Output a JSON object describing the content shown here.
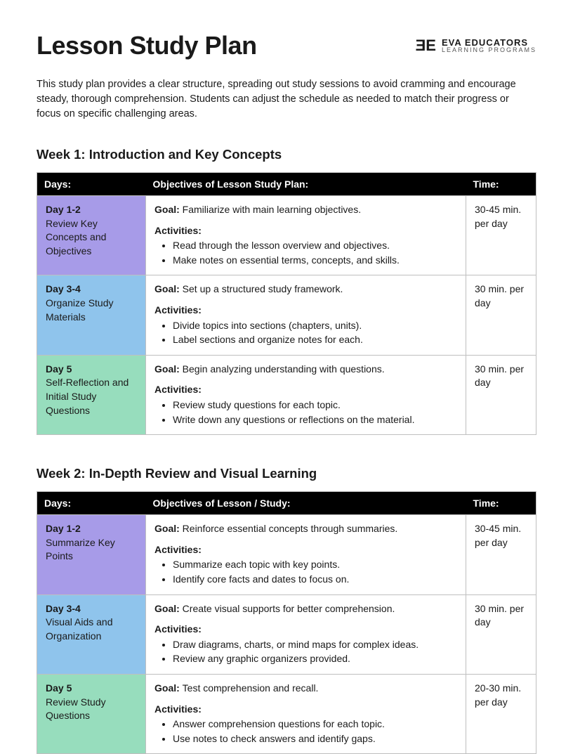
{
  "page_title": "Lesson Study Plan",
  "brand": {
    "mark": "ƎE",
    "name": "EVA EDUCATORS",
    "tagline": "LEARNING PROGRAMS"
  },
  "intro": "This study plan provides a clear structure, spreading out study sessions to avoid cramming and encourage steady, thorough comprehension. Students can adjust the schedule as needed to match their progress or focus on specific challenging areas.",
  "colors": {
    "header_bg": "#000000",
    "header_text": "#ffffff",
    "border": "#bfbfbf",
    "row_purple": "#a79be8",
    "row_blue": "#8fc4ec",
    "row_green": "#97ddbd"
  },
  "labels": {
    "goal": "Goal:",
    "activities": "Activities:"
  },
  "weeks": [
    {
      "heading": "Week 1: Introduction and Key Concepts",
      "columns": {
        "days": "Days:",
        "objectives": "Objectives of Lesson Study Plan:",
        "time": "Time:"
      },
      "rows": [
        {
          "day_title": "Day 1-2",
          "day_desc": "Review Key Concepts and Objectives",
          "goal": "Familiarize with main learning objectives.",
          "activities": [
            "Read through the lesson overview and objectives.",
            "Make notes on essential terms, concepts, and skills."
          ],
          "time": "30-45 min. per day",
          "bg": "bg-purple"
        },
        {
          "day_title": "Day 3-4",
          "day_desc": "Organize Study Materials",
          "goal": "Set up a structured study framework.",
          "activities": [
            "Divide topics into sections (chapters, units).",
            "Label sections and organize notes for each."
          ],
          "time": "30 min. per day",
          "bg": "bg-blue"
        },
        {
          "day_title": "Day 5",
          "day_desc": "Self-Reflection and Initial Study Questions",
          "goal": "Begin analyzing understanding with questions.",
          "activities": [
            "Review study questions for each topic.",
            "Write down any questions or reflections on the material."
          ],
          "time": "30 min. per day",
          "bg": "bg-green"
        }
      ]
    },
    {
      "heading": "Week 2: In-Depth Review and Visual Learning",
      "columns": {
        "days": "Days:",
        "objectives": "Objectives of Lesson / Study:",
        "time": "Time:"
      },
      "rows": [
        {
          "day_title": "Day 1-2",
          "day_desc": "Summarize Key Points",
          "goal": "Reinforce essential concepts through summaries.",
          "activities": [
            "Summarize each topic with key points.",
            "Identify core facts and dates to focus on."
          ],
          "time": "30-45 min. per day",
          "bg": "bg-purple"
        },
        {
          "day_title": "Day 3-4",
          "day_desc": "Visual Aids and Organization",
          "goal": "Create visual supports for better comprehension.",
          "activities": [
            "Draw diagrams, charts, or mind maps for complex ideas.",
            "Review any graphic organizers provided."
          ],
          "time": "30 min. per day",
          "bg": "bg-blue"
        },
        {
          "day_title": "Day 5",
          "day_desc": "Review Study Questions",
          "goal": "Test comprehension and recall.",
          "activities": [
            "Answer comprehension questions for each topic.",
            "Use notes to check answers and identify gaps."
          ],
          "time": "20-30 min. per day",
          "bg": "bg-green"
        }
      ]
    }
  ]
}
